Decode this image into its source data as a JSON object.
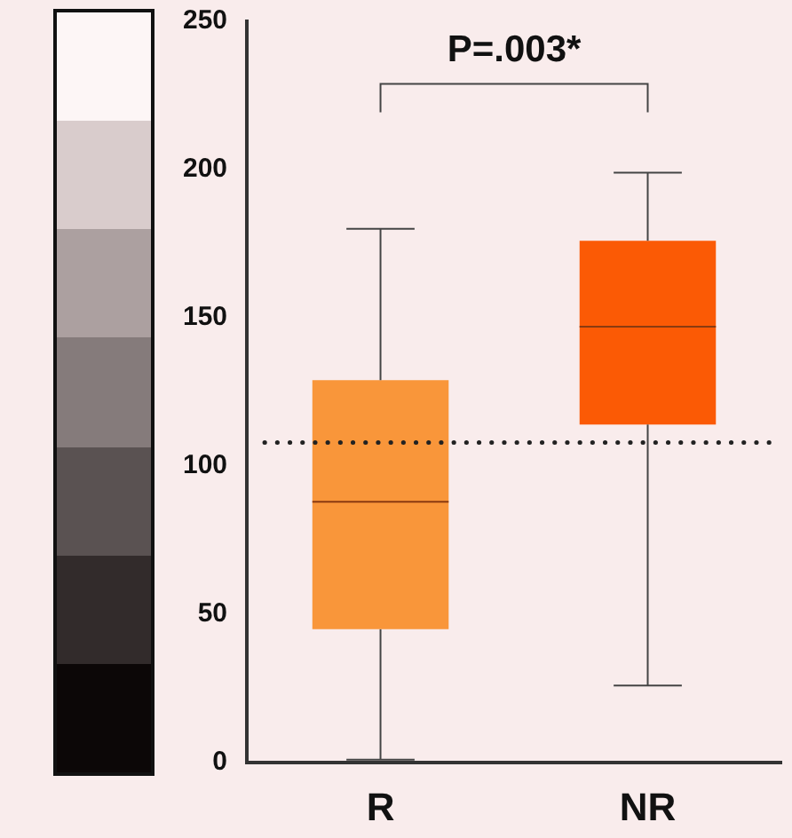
{
  "chart_data": {
    "type": "box",
    "categories": [
      "R",
      "NR"
    ],
    "boxes": [
      {
        "low": 1,
        "q1": 45,
        "median": 88,
        "q3": 129,
        "high": 180
      },
      {
        "low": 26,
        "q1": 114,
        "median": 147,
        "q3": 176,
        "high": 199
      }
    ],
    "colors": [
      "#f9963a",
      "#fb5a05"
    ],
    "ylim": [
      0,
      250
    ],
    "yticks": [
      0,
      50,
      100,
      150,
      200,
      250
    ],
    "ref_lines": [
      {
        "axis": "y",
        "value": 108,
        "line_style": "dotted",
        "color": "#222222"
      }
    ],
    "annotations": [
      "P=.003*"
    ],
    "grid": false,
    "legend": false
  }
}
